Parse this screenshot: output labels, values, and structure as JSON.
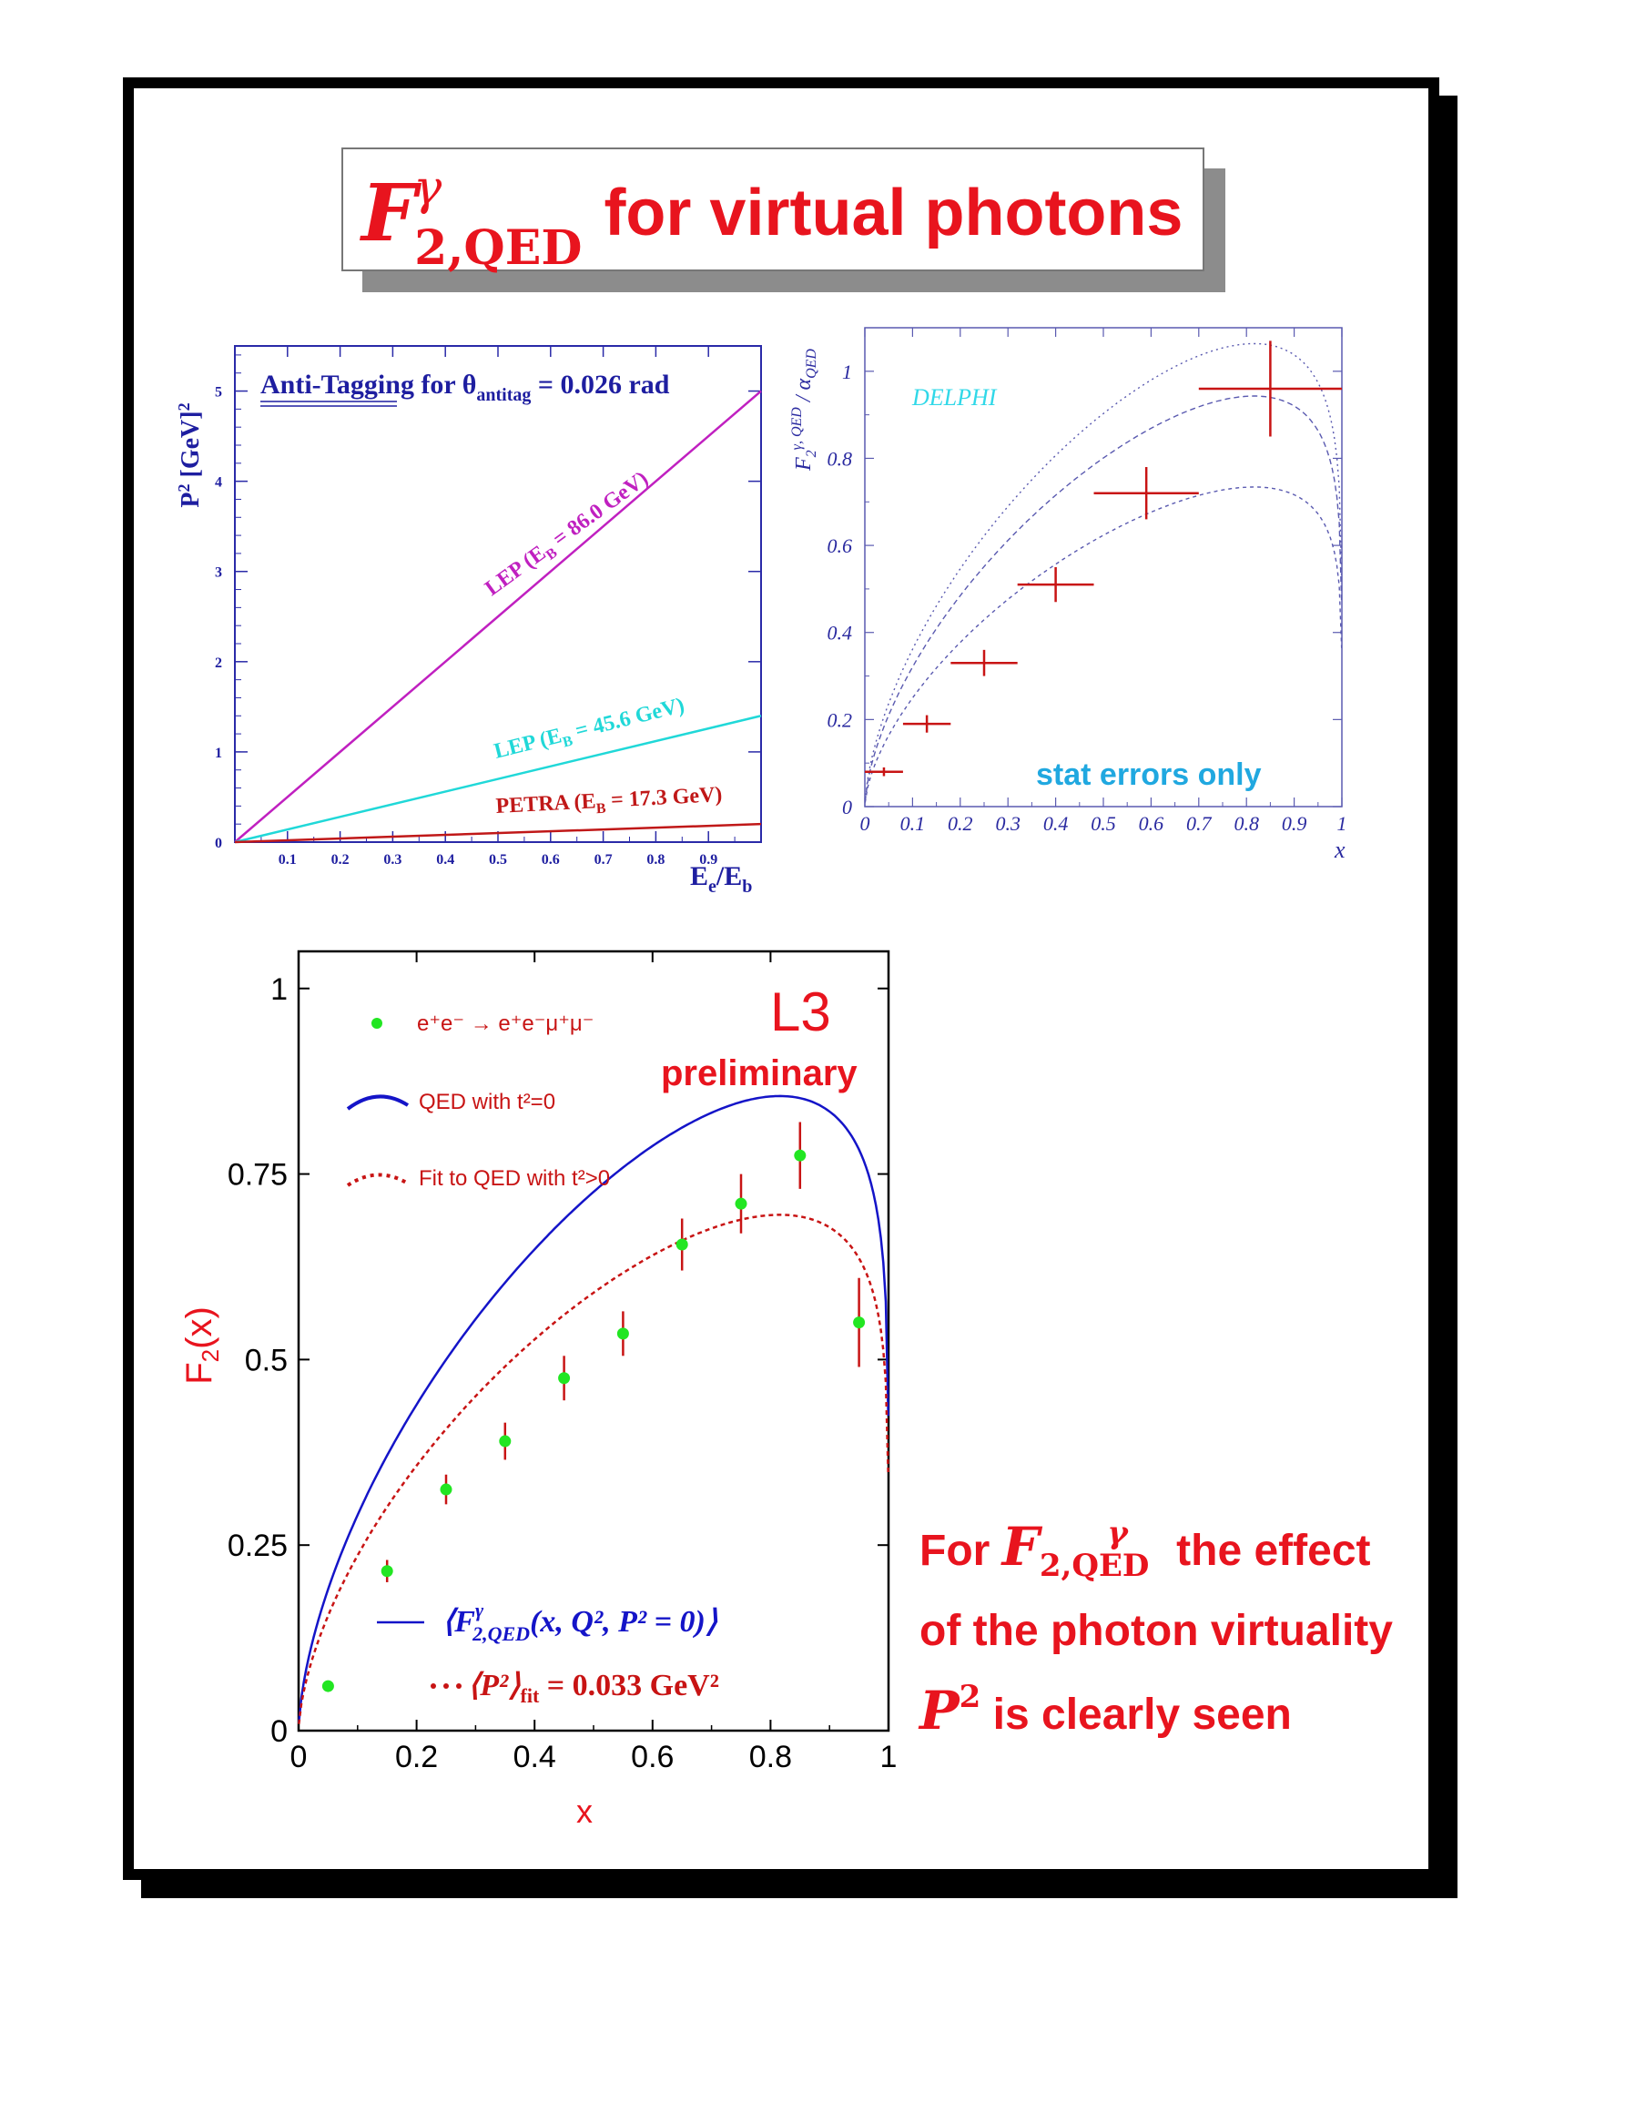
{
  "title": {
    "symbol": "F",
    "superscript": "γ",
    "subscript": "2,QED",
    "text": "for virtual photons"
  },
  "chart_data": [
    {
      "type": "line",
      "title": "Anti-Tagging for θantitag = 0.026 rad",
      "title_parts": {
        "pre": "Anti-Tagging for θ",
        "sub": "antitag",
        "post": " = 0.026 rad"
      },
      "xlabel": "Ee/Eb",
      "xlabel_parts": {
        "main": "E",
        "sub1": "e",
        "mid": "/E",
        "sub2": "b"
      },
      "ylabel": "P2 [GeV]2",
      "ylabel_parts": {
        "main": "P",
        "sup": "2",
        "rest": " [GeV]",
        "sup2": "2"
      },
      "xlim": [
        0,
        1
      ],
      "ylim": [
        0,
        5.5
      ],
      "xticks": [
        "0.1",
        "0.2",
        "0.3",
        "0.4",
        "0.5",
        "0.6",
        "0.7",
        "0.8",
        "0.9"
      ],
      "yticks": [
        "0",
        "1",
        "2",
        "3",
        "4",
        "5"
      ],
      "series": [
        {
          "name": "LEP (EB = 86.0 GeV)",
          "label_parts": {
            "pre": "LEP (E",
            "sub": "B",
            "post": " = 86.0 GeV)"
          },
          "color": "#c020c0",
          "x": [
            0,
            1
          ],
          "y": [
            0,
            5.0
          ]
        },
        {
          "name": "LEP (EB = 45.6 GeV)",
          "label_parts": {
            "pre": "LEP (E",
            "sub": "B",
            "post": " = 45.6 GeV)"
          },
          "color": "#20d8d8",
          "x": [
            0,
            1
          ],
          "y": [
            0,
            1.4
          ]
        },
        {
          "name": "PETRA (EB = 17.3 GeV)",
          "label_parts": {
            "pre": "PETRA (E",
            "sub": "B",
            "post": " = 17.3 GeV)"
          },
          "color": "#c01818",
          "x": [
            0,
            1
          ],
          "y": [
            0,
            0.2
          ]
        }
      ]
    },
    {
      "type": "scatter",
      "experiment": "DELPHI",
      "xlabel": "x",
      "ylabel": "F2γ, QED / αQED",
      "ylabel_parts": {
        "main": "F",
        "sub": "2",
        "sup": "γ, QED",
        "rest": " / α",
        "sub2": "QED"
      },
      "annotation": "stat errors only",
      "xlim": [
        0,
        1
      ],
      "ylim": [
        0,
        1.1
      ],
      "xticks": [
        "0",
        "0.1",
        "0.2",
        "0.3",
        "0.4",
        "0.5",
        "0.6",
        "0.7",
        "0.8",
        "0.9",
        "1"
      ],
      "yticks": [
        "0",
        "0.2",
        "0.4",
        "0.6",
        "0.8",
        "1"
      ],
      "points": [
        {
          "x": 0.04,
          "y": 0.08,
          "xerr": 0.04,
          "yerr": 0.01
        },
        {
          "x": 0.13,
          "y": 0.19,
          "xerr": 0.05,
          "yerr": 0.02
        },
        {
          "x": 0.25,
          "y": 0.33,
          "xerr": 0.07,
          "yerr": 0.03
        },
        {
          "x": 0.4,
          "y": 0.51,
          "xerr": 0.08,
          "yerr": 0.04
        },
        {
          "x": 0.59,
          "y": 0.72,
          "xerr": 0.11,
          "yerr": 0.06
        },
        {
          "x": 0.85,
          "y": 0.96,
          "xerr": 0.15,
          "yerr": 0.11
        }
      ],
      "curves": [
        {
          "peak_x": 0.85,
          "peak_y": 1.06
        },
        {
          "peak_x": 0.85,
          "peak_y": 0.94
        },
        {
          "peak_x": 0.86,
          "peak_y": 0.73
        }
      ],
      "curve_color": "#5a5ab0"
    },
    {
      "type": "scatter",
      "experiment": "L3",
      "status": "preliminary",
      "xlabel": "x",
      "ylabel": "F2(x)",
      "ylabel_parts": {
        "main": "F",
        "sub": "2",
        "rest": "(x)"
      },
      "xlim": [
        0,
        1
      ],
      "ylim": [
        0,
        1.05
      ],
      "xticks": [
        "0",
        "0.2",
        "0.4",
        "0.6",
        "0.8",
        "1"
      ],
      "yticks": [
        "0",
        "0.25",
        "0.5",
        "0.75",
        "1"
      ],
      "legend": {
        "data": "e⁺e⁻ → e⁺e⁻μ⁺μ⁻",
        "qed": "QED with t²=0",
        "fit": "Fit to QED with t²>0",
        "avg_f2": "⟨F2,QEDγ(x, Q², P² = 0)⟩",
        "avg_f2_parts": {
          "pre": "⟨F",
          "sup": "γ",
          "sub": "2,QED",
          "post": "(x, Q², P² = 0)⟩"
        },
        "avg_p2": "⟨P²⟩fit = 0.033 GeV²",
        "avg_p2_parts": {
          "pre": "⟨P²⟩",
          "sub": "fit",
          "post": " = 0.033 GeV²"
        }
      },
      "points": [
        {
          "x": 0.05,
          "y": 0.06,
          "yerr": 0.0
        },
        {
          "x": 0.15,
          "y": 0.215,
          "yerr": 0.015
        },
        {
          "x": 0.25,
          "y": 0.325,
          "yerr": 0.02
        },
        {
          "x": 0.35,
          "y": 0.39,
          "yerr": 0.025
        },
        {
          "x": 0.45,
          "y": 0.475,
          "yerr": 0.03
        },
        {
          "x": 0.55,
          "y": 0.535,
          "yerr": 0.03
        },
        {
          "x": 0.65,
          "y": 0.655,
          "yerr": 0.035
        },
        {
          "x": 0.75,
          "y": 0.71,
          "yerr": 0.04
        },
        {
          "x": 0.85,
          "y": 0.775,
          "yerr": 0.045
        },
        {
          "x": 0.95,
          "y": 0.55,
          "yerr": 0.06
        }
      ],
      "qed_curve": {
        "peak_x": 0.82,
        "peak_y": 0.855,
        "color": "#1414c8"
      },
      "fit_curve": {
        "peak_x": 0.82,
        "peak_y": 0.695,
        "color": "#c81414"
      },
      "point_color": "#22e622",
      "error_color": "#c81414"
    }
  ],
  "note": {
    "pre": "For ",
    "symbol": "F",
    "superscript": "γ",
    "subscript": "2,QED",
    "line1_post": " the effect",
    "line2": "of the photon virtuality",
    "symbol2": "P",
    "sup2": "2",
    "line3_post": " is clearly seen"
  }
}
